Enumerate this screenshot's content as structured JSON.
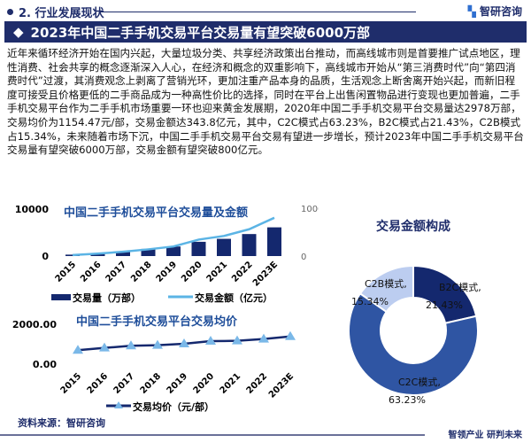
{
  "header": {
    "section": "2. 行业发展现状",
    "brand": "智研咨询",
    "title": "2023年中国二手手机交易平台交易量有望突破6000万部"
  },
  "paragraph": "近年来循环经济开始在国内兴起，大量垃圾分类、共享经济政策出台推动，而高线城市则是首要推广试点地区，理性消费、社会共享的概念逐渐深入人心，在经济和概念的双重影响下，高线城市开始从“第三消费时代”向“第四消费时代”过渡，其消费观念上剥离了营销光环，更加注重产品本身的品质，生活观念上断舍离开始兴起，而新旧程度可接受且价格更低的二手商品成为一种高性价比的选择，同时在平台上出售闲置物品进行变现也更加普遍，二手手机交易平台作为二手手机市场重要一环也迎来黄金发展期，2020年中国二手手机交易平台交易量达2978万部，交易均价为1154.47元/部，交易金额达343.8亿元，其中，C2C模式占63.23%，B2C模式占21.43%，C2B模式占15.34%，未来随着市场下沉，中国二手手机交易平台交易有望进一步增长，预计2023年中国二手手机交易平台交易量有望突破6000万部，交易金额有望突破800亿元。",
  "footer": {
    "source": "资料来源：智研咨询",
    "slogan": "智领产业 研判未来"
  },
  "chart_data": [
    {
      "type": "bar",
      "title": "中国二手手机交易平台交易量及金额",
      "categories": [
        "2015",
        "2016",
        "2017",
        "2018",
        "2019",
        "2020",
        "2021",
        "2022",
        "2023E"
      ],
      "series": [
        {
          "name": "交易量（万部）",
          "type": "bar",
          "axis": "left",
          "values": [
            300,
            600,
            1000,
            1500,
            2000,
            2978,
            3600,
            4600,
            6000
          ]
        },
        {
          "name": "交易金额（亿元）",
          "type": "line",
          "axis": "right",
          "values": [
            20,
            50,
            90,
            140,
            200,
            343.8,
            420,
            560,
            800
          ]
        }
      ],
      "left_ticks": [
        "0",
        "10000"
      ],
      "right_ticks": [
        "0",
        "1000"
      ],
      "ylim": [
        0,
        10000
      ],
      "y2lim": [
        0,
        1000
      ],
      "legend": "bottom",
      "colors": {
        "bar": "#14286e",
        "line": "#5bb4e5"
      }
    },
    {
      "type": "line",
      "title": "中国二手手机交易平台交易均价",
      "categories": [
        "2015",
        "2016",
        "2017",
        "2018",
        "2019",
        "2020",
        "2021",
        "2022",
        "2023E"
      ],
      "series": [
        {
          "name": "交易均价（元/部）",
          "values": [
            700,
            815,
            920,
            950,
            1020,
            1154.47,
            1170,
            1260,
            1390
          ]
        }
      ],
      "ticks": [
        "0.00",
        "2000.00"
      ],
      "ylim": [
        0,
        2000
      ],
      "legend": "bottom",
      "colors": {
        "line": "#14286e",
        "marker": "#7ab8e8"
      }
    },
    {
      "type": "pie",
      "title": "交易金额构成",
      "slices": [
        {
          "label": "B2C模式,",
          "pct": "21.43%",
          "value": 21.43,
          "color": "#14286e"
        },
        {
          "label": "C2C模式,",
          "pct": "63.23%",
          "value": 63.23,
          "color": "#2f55a3"
        },
        {
          "label": "C2B模式,",
          "pct": "15.34%",
          "value": 15.34,
          "color": "#bccdf0"
        }
      ]
    }
  ]
}
